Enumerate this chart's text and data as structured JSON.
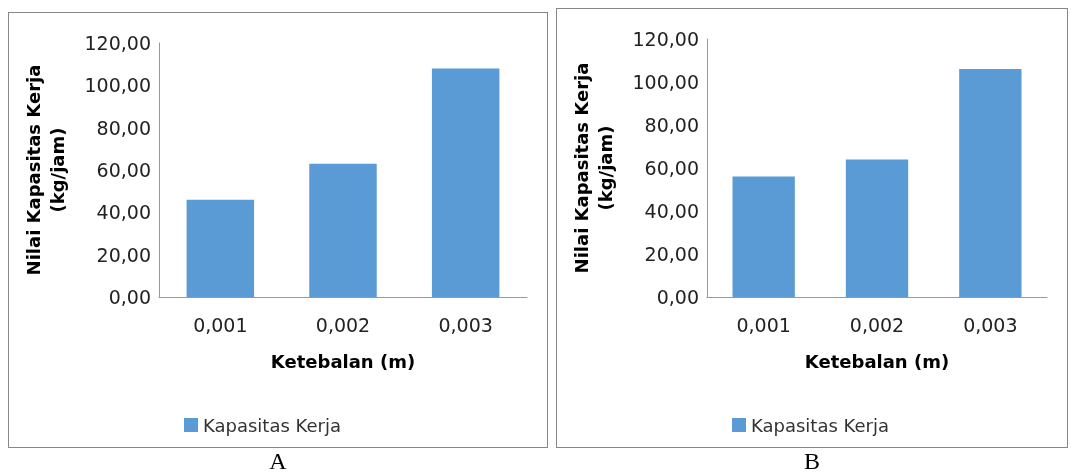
{
  "chart_data": [
    {
      "type": "bar",
      "categories": [
        "0,001",
        "0,002",
        "0,003"
      ],
      "series": [
        {
          "name": "Kapasitas Kerja",
          "color": "#5b9bd5",
          "values": [
            46,
            63,
            108
          ]
        }
      ],
      "xlabel": "Ketebalan (m)",
      "ylabel": "Nilai Kapasitas Kerja\n(kg/jam)",
      "ylim": [
        0,
        120
      ],
      "yticks": [
        {
          "value": 0,
          "label": "0,00"
        },
        {
          "value": 20,
          "label": "20,00"
        },
        {
          "value": 40,
          "label": "40,00"
        },
        {
          "value": 60,
          "label": "60,00"
        },
        {
          "value": 80,
          "label": "80,00"
        },
        {
          "value": 100,
          "label": "100,00"
        },
        {
          "value": 120,
          "label": "120,00"
        }
      ],
      "grid": false,
      "legend": "bottom",
      "annotations": [
        "A"
      ]
    },
    {
      "type": "bar",
      "categories": [
        "0,001",
        "0,002",
        "0,003"
      ],
      "series": [
        {
          "name": "Kapasitas Kerja",
          "color": "#5b9bd5",
          "values": [
            56,
            64,
            106
          ]
        }
      ],
      "xlabel": "Ketebalan (m)",
      "ylabel": "Nilai Kapasitas Kerja\n(kg/jam)",
      "ylim": [
        0,
        120
      ],
      "yticks": [
        {
          "value": 0,
          "label": "0,00"
        },
        {
          "value": 20,
          "label": "20,00"
        },
        {
          "value": 40,
          "label": "40,00"
        },
        {
          "value": 60,
          "label": "60,00"
        },
        {
          "value": 80,
          "label": "80,00"
        },
        {
          "value": 100,
          "label": "100,00"
        },
        {
          "value": 120,
          "label": "120,00"
        }
      ],
      "grid": false,
      "legend": "bottom",
      "annotations": [
        "B"
      ]
    }
  ]
}
